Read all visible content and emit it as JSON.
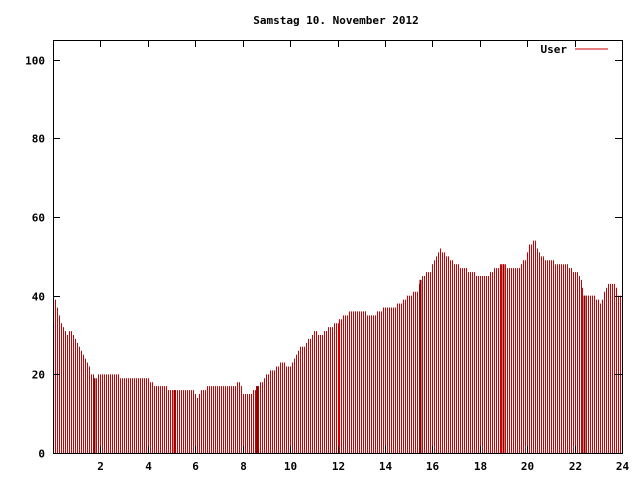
{
  "chart_data": {
    "type": "bar",
    "title": "Samstag 10. November 2012",
    "xlabel": "",
    "ylabel": "",
    "xlim": [
      0,
      24
    ],
    "ylim": [
      0,
      105
    ],
    "x_ticks": [
      2,
      4,
      6,
      8,
      10,
      12,
      14,
      16,
      18,
      20,
      22,
      24
    ],
    "y_ticks": [
      0,
      20,
      40,
      60,
      80,
      100
    ],
    "grid": false,
    "legend_position": "top-right",
    "series": [
      {
        "name": "User",
        "color": "#cc0000",
        "knots": [
          [
            0.05,
            40
          ],
          [
            0.15,
            37
          ],
          [
            0.25,
            35
          ],
          [
            0.4,
            32
          ],
          [
            0.55,
            30
          ],
          [
            0.7,
            31
          ],
          [
            0.85,
            30
          ],
          [
            1.0,
            28
          ],
          [
            1.2,
            26
          ],
          [
            1.35,
            24
          ],
          [
            1.5,
            22
          ],
          [
            1.6,
            20
          ],
          [
            1.8,
            19
          ],
          [
            2.0,
            20
          ],
          [
            2.5,
            20
          ],
          [
            3.0,
            19
          ],
          [
            3.5,
            19
          ],
          [
            4.0,
            19
          ],
          [
            4.3,
            17
          ],
          [
            4.6,
            17
          ],
          [
            5.0,
            16
          ],
          [
            5.5,
            16
          ],
          [
            5.9,
            16
          ],
          [
            6.05,
            14
          ],
          [
            6.3,
            16
          ],
          [
            6.6,
            17
          ],
          [
            7.0,
            17
          ],
          [
            7.5,
            17
          ],
          [
            7.85,
            18
          ],
          [
            8.0,
            15
          ],
          [
            8.3,
            15
          ],
          [
            8.5,
            16
          ],
          [
            8.8,
            18
          ],
          [
            9.0,
            20
          ],
          [
            9.3,
            21
          ],
          [
            9.6,
            23
          ],
          [
            10.0,
            22
          ],
          [
            10.3,
            26
          ],
          [
            10.5,
            27
          ],
          [
            10.7,
            28
          ],
          [
            11.0,
            31
          ],
          [
            11.3,
            30
          ],
          [
            11.6,
            32
          ],
          [
            12.0,
            33
          ],
          [
            12.3,
            35
          ],
          [
            12.6,
            36
          ],
          [
            13.0,
            36
          ],
          [
            13.5,
            35
          ],
          [
            14.0,
            37
          ],
          [
            14.3,
            37
          ],
          [
            14.6,
            38
          ],
          [
            15.0,
            40
          ],
          [
            15.3,
            41
          ],
          [
            15.6,
            45
          ],
          [
            15.9,
            46
          ],
          [
            16.1,
            49
          ],
          [
            16.3,
            52
          ],
          [
            16.5,
            51
          ],
          [
            16.8,
            49
          ],
          [
            17.0,
            48
          ],
          [
            17.3,
            47
          ],
          [
            17.6,
            46
          ],
          [
            18.0,
            45
          ],
          [
            18.3,
            45
          ],
          [
            18.6,
            47
          ],
          [
            19.0,
            48
          ],
          [
            19.3,
            47
          ],
          [
            19.6,
            47
          ],
          [
            19.9,
            49
          ],
          [
            20.1,
            53
          ],
          [
            20.3,
            54
          ],
          [
            20.5,
            51
          ],
          [
            20.8,
            49
          ],
          [
            21.0,
            49
          ],
          [
            21.3,
            48
          ],
          [
            21.6,
            48
          ],
          [
            22.0,
            46
          ],
          [
            22.2,
            45
          ],
          [
            22.4,
            40
          ],
          [
            22.8,
            40
          ],
          [
            23.1,
            38
          ],
          [
            23.3,
            42
          ],
          [
            23.5,
            43
          ],
          [
            23.7,
            43
          ],
          [
            23.85,
            40
          ],
          [
            24.0,
            40
          ]
        ],
        "highlight_x": [
          1.75,
          5.1,
          8.6,
          15.5,
          19.0,
          22.4
        ]
      }
    ]
  }
}
